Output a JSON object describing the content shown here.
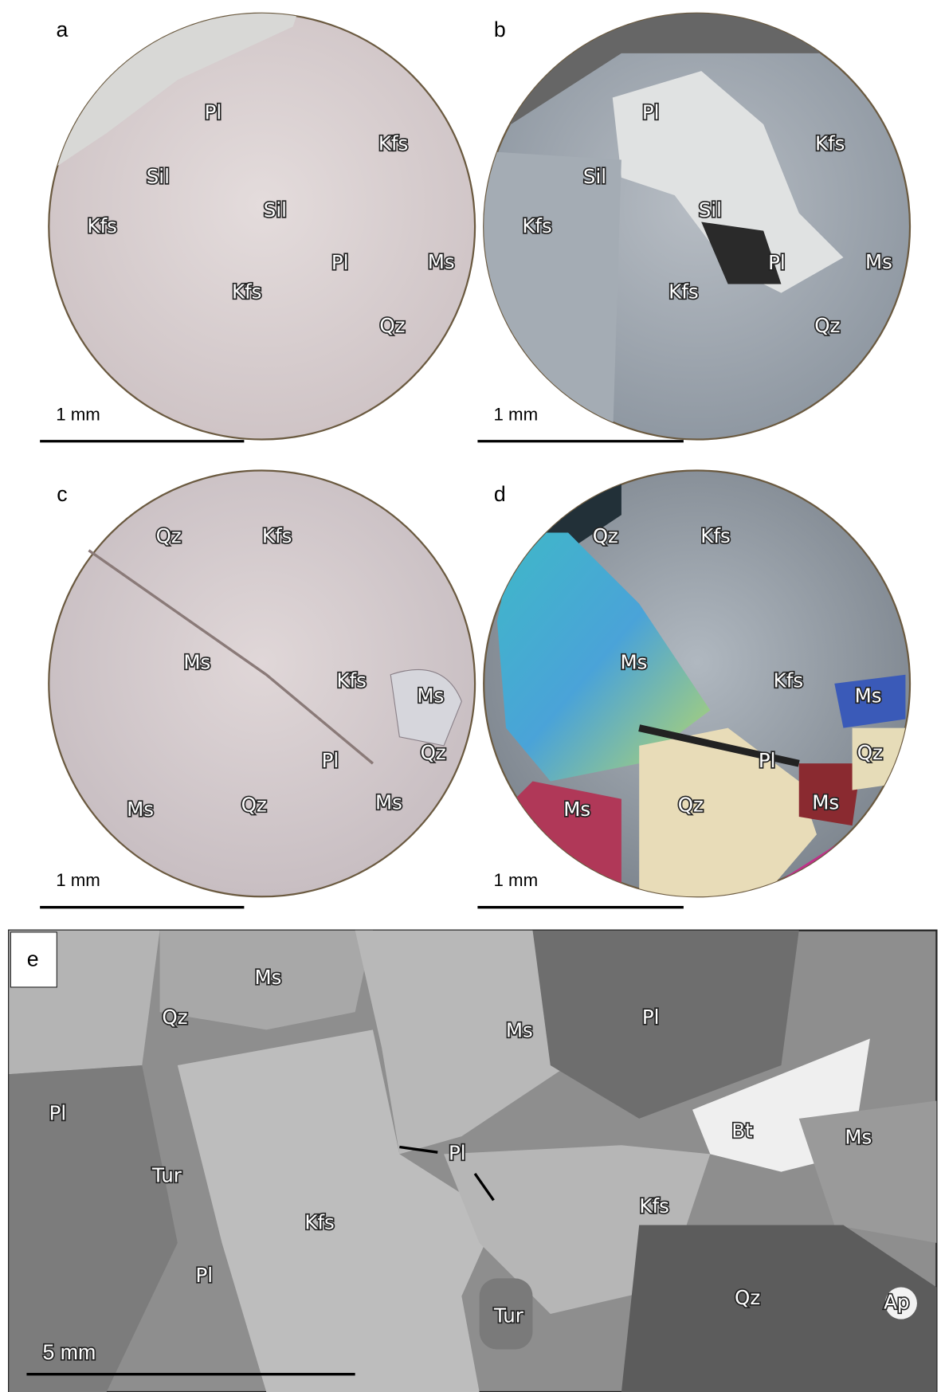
{
  "panels": [
    {
      "label": "a",
      "scale_bar": "1 mm",
      "minerals": [
        "Pl",
        "Kfs",
        "Sil",
        "Sil",
        "Kfs",
        "Pl",
        "Ms",
        "Kfs",
        "Qz"
      ]
    },
    {
      "label": "b",
      "scale_bar": "1 mm",
      "minerals": [
        "Pl",
        "Kfs",
        "Sil",
        "Sil",
        "Kfs",
        "Pl",
        "Ms",
        "Kfs",
        "Qz"
      ]
    },
    {
      "label": "c",
      "scale_bar": "1 mm",
      "minerals": [
        "Qz",
        "Kfs",
        "Ms",
        "Kfs",
        "Ms",
        "Qz",
        "Pl",
        "Ms",
        "Qz",
        "Ms"
      ]
    },
    {
      "label": "d",
      "scale_bar": "1 mm",
      "minerals": [
        "Qz",
        "Kfs",
        "Ms",
        "Kfs",
        "Ms",
        "Qz",
        "Pl",
        "Ms",
        "Qz",
        "Ms"
      ]
    },
    {
      "label": "e",
      "scale_bar": "5 mm",
      "minerals": [
        "Ms",
        "Qz",
        "Ms",
        "Pl",
        "Pl",
        "Bt",
        "Ms",
        "Pl",
        "Tur",
        "Kfs",
        "Kfs",
        "Pl",
        "Qz",
        "Ap",
        "Tur"
      ]
    }
  ]
}
